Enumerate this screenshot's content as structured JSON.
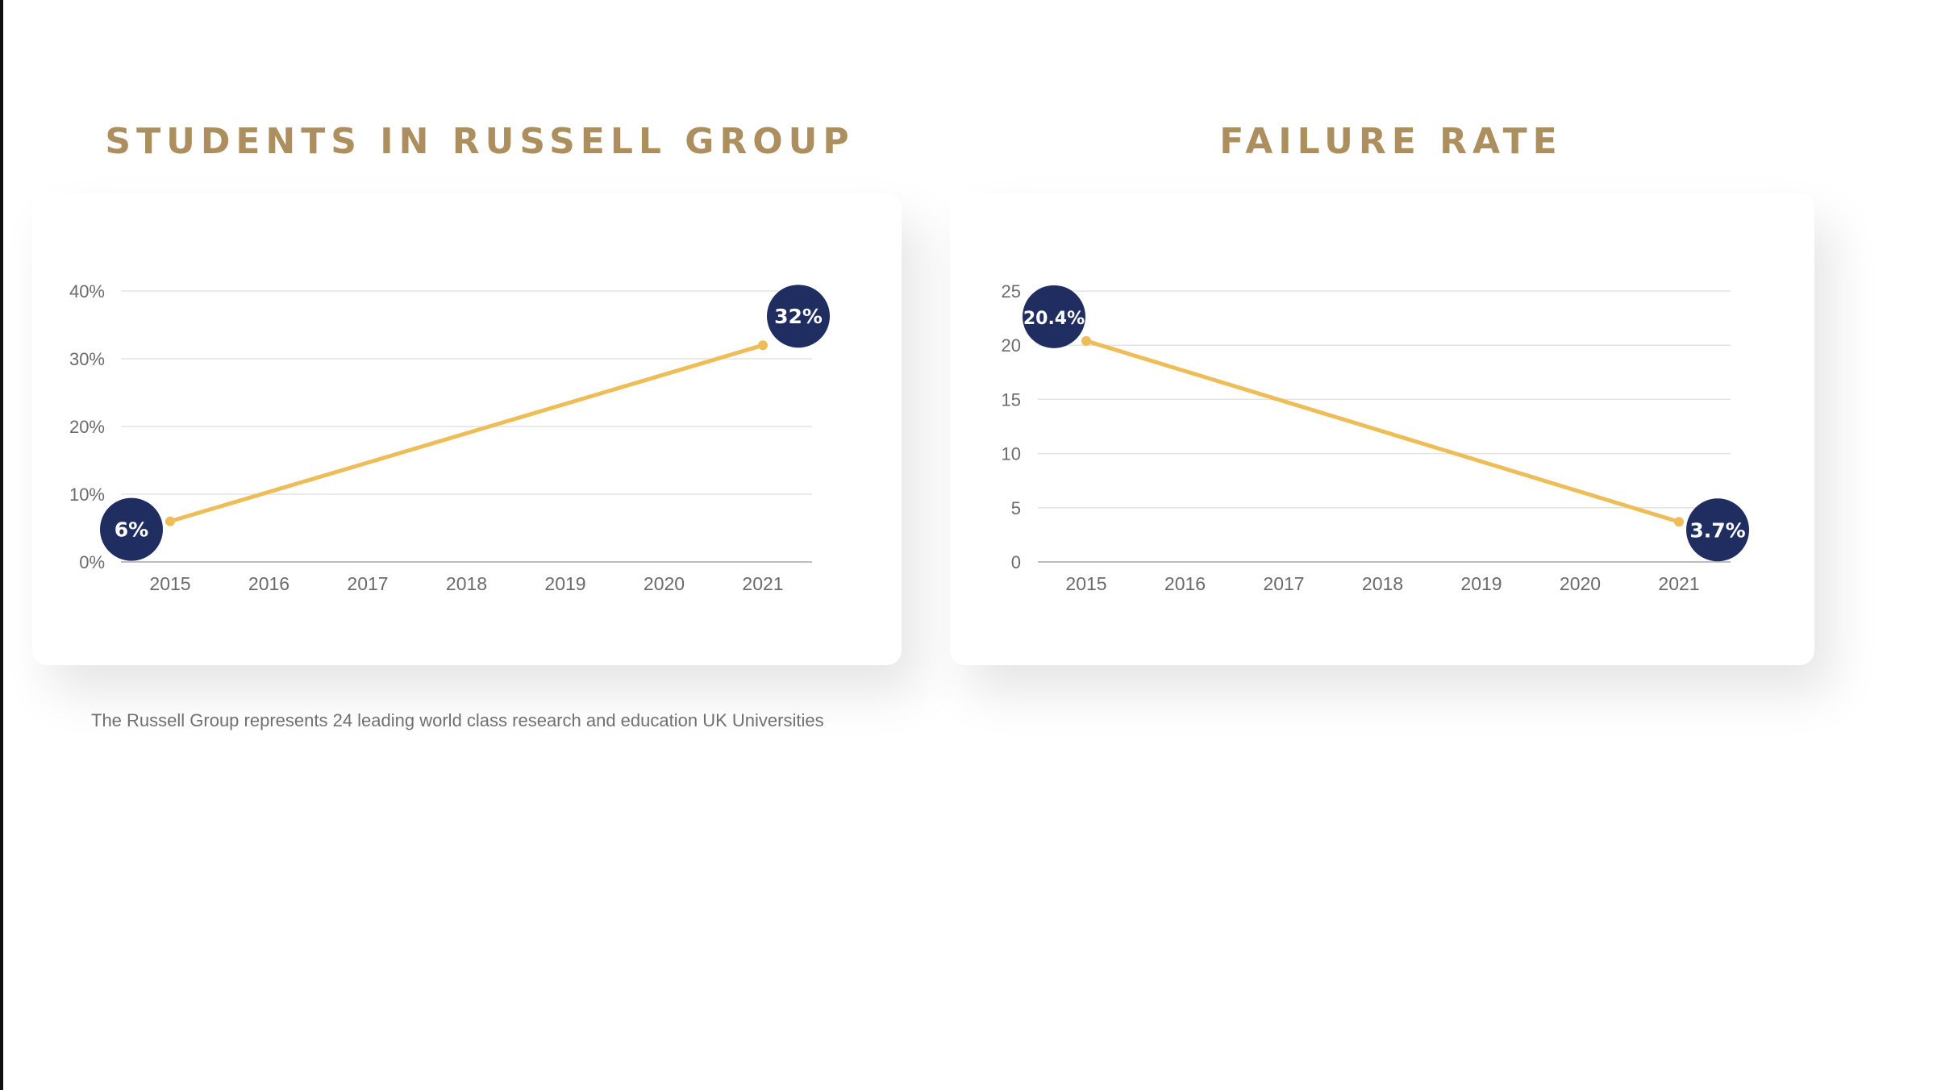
{
  "footnote": "The Russell Group represents 24 leading world class research and education UK Universities",
  "colors": {
    "title": "#ad8f5f",
    "line": "#efbd58",
    "badge": "#1f2d61",
    "axis_text": "#6b6b6b",
    "grid": "#e3e3e3"
  },
  "chart_data": [
    {
      "type": "line",
      "title": "STUDENTS IN RUSSELL GROUP",
      "categories": [
        "2015",
        "2016",
        "2017",
        "2018",
        "2019",
        "2020",
        "2021"
      ],
      "series": [
        {
          "x": [
            "2015",
            "2021"
          ],
          "values": [
            6,
            32
          ]
        }
      ],
      "data_labels": [
        "6%",
        "32%"
      ],
      "y_ticks": [
        "0%",
        "10%",
        "20%",
        "30%",
        "40%"
      ],
      "ylim": [
        0,
        40
      ],
      "grid": true
    },
    {
      "type": "line",
      "title": "FAILURE RATE",
      "categories": [
        "2015",
        "2016",
        "2017",
        "2018",
        "2019",
        "2020",
        "2021"
      ],
      "series": [
        {
          "x": [
            "2015",
            "2021"
          ],
          "values": [
            20.4,
            3.7
          ]
        }
      ],
      "data_labels": [
        "20.4%",
        "3.7%"
      ],
      "y_ticks": [
        "0",
        "5",
        "10",
        "15",
        "20",
        "25"
      ],
      "ylim": [
        0,
        25
      ],
      "grid": true
    }
  ]
}
